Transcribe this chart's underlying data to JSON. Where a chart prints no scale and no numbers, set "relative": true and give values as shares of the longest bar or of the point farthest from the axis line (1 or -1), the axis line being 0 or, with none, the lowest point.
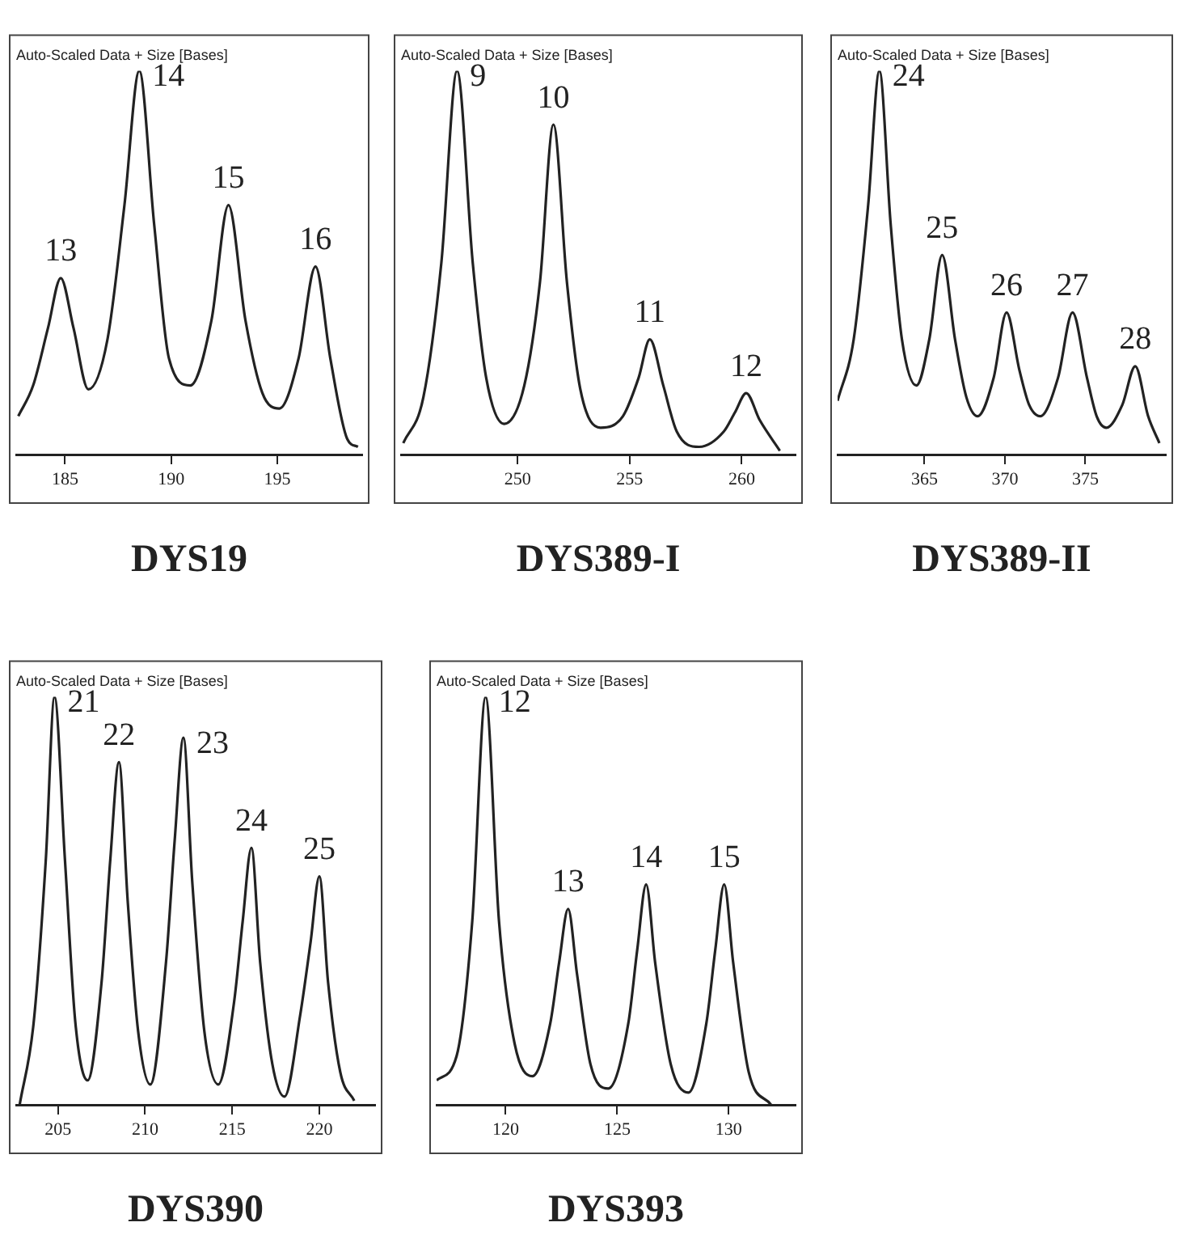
{
  "chart_data": [
    {
      "type": "line",
      "title": "DYS19",
      "subtitle": "Auto-Scaled Data + Size [Bases]",
      "relative": true,
      "color": "#222222",
      "xlim": [
        182.7,
        199
      ],
      "xticks": [
        185,
        190,
        195
      ],
      "x": [
        182.8,
        183.5,
        184.2,
        184.8,
        185.4,
        186.1,
        187.0,
        187.8,
        188.5,
        189.2,
        189.9,
        190.9,
        191.9,
        192.7,
        193.5,
        194.3,
        195.1,
        196.0,
        196.8,
        197.5,
        198.3,
        198.8
      ],
      "values": [
        0.1,
        0.18,
        0.33,
        0.46,
        0.33,
        0.17,
        0.3,
        0.65,
        1.0,
        0.6,
        0.25,
        0.18,
        0.35,
        0.65,
        0.35,
        0.16,
        0.12,
        0.25,
        0.49,
        0.25,
        0.04,
        0.02
      ],
      "annotations": [
        {
          "text": "13",
          "x": 184.8,
          "y": 0.46
        },
        {
          "text": "14",
          "x": 188.5,
          "y": 1.0
        },
        {
          "text": "15",
          "x": 192.7,
          "y": 0.65
        },
        {
          "text": "16",
          "x": 196.8,
          "y": 0.49
        }
      ]
    },
    {
      "type": "line",
      "title": "DYS389-I",
      "subtitle": "Auto-Scaled Data + Size [Bases]",
      "relative": true,
      "color": "#222222",
      "xlim": [
        244.8,
        262.4
      ],
      "xticks": [
        250,
        255,
        260
      ],
      "x": [
        244.9,
        245.8,
        246.6,
        247.3,
        248.0,
        248.6,
        249.4,
        250.3,
        251.0,
        251.6,
        252.2,
        252.8,
        253.7,
        254.7,
        255.4,
        255.9,
        256.5,
        257.1,
        258.1,
        259.2,
        259.7,
        260.2,
        260.8,
        261.7
      ],
      "values": [
        0.03,
        0.15,
        0.5,
        1.0,
        0.5,
        0.2,
        0.08,
        0.18,
        0.45,
        0.86,
        0.45,
        0.17,
        0.07,
        0.1,
        0.2,
        0.3,
        0.18,
        0.06,
        0.02,
        0.06,
        0.11,
        0.16,
        0.09,
        0.01
      ],
      "annotations": [
        {
          "text": "9",
          "x": 247.3,
          "y": 1.0
        },
        {
          "text": "10",
          "x": 251.6,
          "y": 0.86
        },
        {
          "text": "11",
          "x": 255.9,
          "y": 0.3
        },
        {
          "text": "12",
          "x": 260.2,
          "y": 0.16
        }
      ]
    },
    {
      "type": "line",
      "title": "DYS389-II",
      "subtitle": "Auto-Scaled Data + Size [Bases]",
      "relative": true,
      "color": "#222222",
      "xlim": [
        359.6,
        380
      ],
      "xticks": [
        365,
        370,
        375
      ],
      "x": [
        359.6,
        360.6,
        361.5,
        362.2,
        362.9,
        363.6,
        364.5,
        365.3,
        366.1,
        366.9,
        367.6,
        368.3,
        369.3,
        370.1,
        370.9,
        371.5,
        372.2,
        373.3,
        374.2,
        375.1,
        375.7,
        376.3,
        377.3,
        378.1,
        378.9,
        379.6
      ],
      "values": [
        0.14,
        0.3,
        0.65,
        1.0,
        0.6,
        0.3,
        0.18,
        0.3,
        0.52,
        0.3,
        0.15,
        0.1,
        0.2,
        0.37,
        0.22,
        0.13,
        0.1,
        0.2,
        0.37,
        0.2,
        0.1,
        0.07,
        0.13,
        0.23,
        0.1,
        0.03
      ],
      "annotations": [
        {
          "text": "24",
          "x": 362.2,
          "y": 1.0
        },
        {
          "text": "25",
          "x": 366.1,
          "y": 0.52
        },
        {
          "text": "26",
          "x": 370.1,
          "y": 0.37
        },
        {
          "text": "27",
          "x": 374.2,
          "y": 0.37
        },
        {
          "text": "28",
          "x": 378.1,
          "y": 0.23
        }
      ]
    },
    {
      "type": "line",
      "title": "DYS390",
      "subtitle": "Auto-Scaled Data + Size [Bases]",
      "relative": true,
      "color": "#222222",
      "xlim": [
        202.6,
        223.2
      ],
      "xticks": [
        205,
        210,
        215,
        220
      ],
      "x": [
        202.8,
        203.6,
        204.3,
        204.8,
        205.4,
        206.0,
        206.7,
        207.5,
        208.0,
        208.5,
        209.0,
        209.6,
        210.3,
        211.2,
        211.7,
        212.2,
        212.7,
        213.4,
        214.2,
        215.1,
        215.6,
        216.1,
        216.6,
        217.3,
        218.0,
        218.9,
        219.5,
        220.0,
        220.5,
        221.2,
        222.0
      ],
      "values": [
        0,
        0.2,
        0.6,
        1.0,
        0.6,
        0.2,
        0.06,
        0.3,
        0.6,
        0.84,
        0.5,
        0.18,
        0.05,
        0.35,
        0.65,
        0.9,
        0.55,
        0.18,
        0.05,
        0.25,
        0.45,
        0.63,
        0.35,
        0.1,
        0.02,
        0.22,
        0.4,
        0.56,
        0.3,
        0.08,
        0.01
      ],
      "annotations": [
        {
          "text": "21",
          "x": 204.8,
          "y": 1.0
        },
        {
          "text": "22",
          "x": 208.5,
          "y": 0.84
        },
        {
          "text": "23",
          "x": 212.2,
          "y": 0.9
        },
        {
          "text": "24",
          "x": 216.1,
          "y": 0.63
        },
        {
          "text": "25",
          "x": 220.0,
          "y": 0.56
        }
      ]
    },
    {
      "type": "line",
      "title": "DYS393",
      "subtitle": "Auto-Scaled Data + Size [Bases]",
      "relative": true,
      "color": "#222222",
      "xlim": [
        116.9,
        133
      ],
      "xticks": [
        120,
        125,
        130
      ],
      "x": [
        116.9,
        117.8,
        118.5,
        119.1,
        119.7,
        120.4,
        121.2,
        122.0,
        122.4,
        122.8,
        123.2,
        123.8,
        124.6,
        125.5,
        125.9,
        126.3,
        126.7,
        127.4,
        128.2,
        129.0,
        129.4,
        129.8,
        130.2,
        130.9,
        131.9
      ],
      "values": [
        0.06,
        0.12,
        0.45,
        1.0,
        0.45,
        0.15,
        0.07,
        0.2,
        0.35,
        0.48,
        0.32,
        0.1,
        0.04,
        0.2,
        0.38,
        0.54,
        0.35,
        0.1,
        0.03,
        0.2,
        0.38,
        0.54,
        0.35,
        0.08,
        0
      ],
      "annotations": [
        {
          "text": "12",
          "x": 119.1,
          "y": 1.0
        },
        {
          "text": "13",
          "x": 122.8,
          "y": 0.48
        },
        {
          "text": "14",
          "x": 126.3,
          "y": 0.54
        },
        {
          "text": "15",
          "x": 129.8,
          "y": 0.54
        }
      ]
    }
  ]
}
